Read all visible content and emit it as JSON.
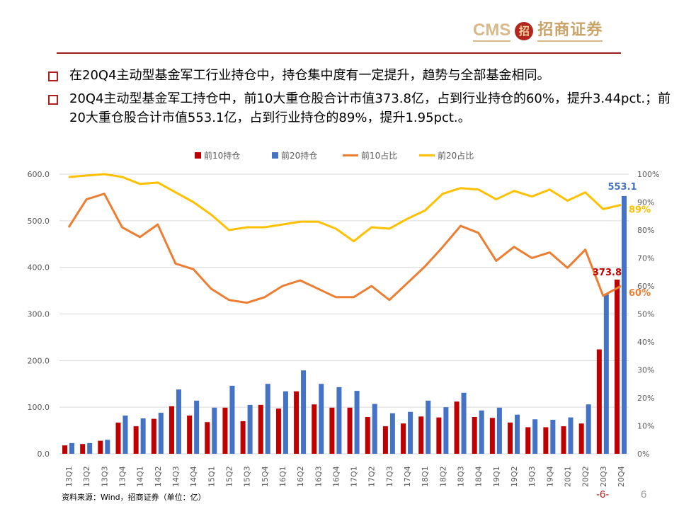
{
  "header": {
    "logo_latin": "CMS",
    "logo_badge": "招",
    "logo_cn": "招商证券"
  },
  "bullets": [
    "在20Q4主动型基金军工行业持仓中，持仓集中度有一定提升，趋势与全部基金相同。",
    "20Q4主动型基金军工持仓中，前10大重仓股合计市值373.8亿，占到行业持仓的60%，提升3.44pct.；前20大重仓股合计市值553.1亿，占到行业持仓的89%，提升1.95pct.。"
  ],
  "footer": {
    "source": "资料来源：Wind，招商证券（单位：亿）",
    "page_mark": "-6-",
    "page_number": "6"
  },
  "colors": {
    "top10_bar": "#c00000",
    "top20_bar": "#4472c4",
    "top10_share": "#ed7d31",
    "top20_share": "#ffc000",
    "rule": "#9b1c1c"
  },
  "chart_data": {
    "type": "bar+line",
    "categories": [
      "13Q1",
      "13Q2",
      "13Q3",
      "13Q4",
      "14Q1",
      "14Q2",
      "14Q3",
      "14Q4",
      "15Q1",
      "15Q2",
      "15Q3",
      "15Q4",
      "16Q1",
      "16Q2",
      "16Q3",
      "16Q4",
      "17Q1",
      "17Q2",
      "17Q3",
      "17Q4",
      "18Q1",
      "18Q2",
      "18Q3",
      "18Q4",
      "19Q1",
      "19Q2",
      "19Q3",
      "19Q4",
      "20Q1",
      "20Q2",
      "20Q3",
      "20Q4"
    ],
    "left_axis": {
      "ylim": [
        0,
        600
      ],
      "ticks": [
        "0.0",
        "100.0",
        "200.0",
        "300.0",
        "400.0",
        "500.0",
        "600.0"
      ]
    },
    "right_axis": {
      "ylim": [
        0,
        100
      ],
      "ticks": [
        "0%",
        "10%",
        "20%",
        "30%",
        "40%",
        "50%",
        "60%",
        "70%",
        "80%",
        "90%",
        "100%"
      ]
    },
    "grid": true,
    "legend_position": "top",
    "series": [
      {
        "name": "前10持仓",
        "type": "bar",
        "axis": "left",
        "values": [
          18,
          21,
          28,
          67,
          59,
          75,
          102,
          82,
          68,
          99,
          70,
          105,
          97,
          134,
          106,
          99,
          99,
          79,
          59,
          65,
          80,
          78,
          112,
          79,
          77,
          67,
          57,
          57,
          59,
          65,
          224,
          373.8
        ]
      },
      {
        "name": "前20持仓",
        "type": "bar",
        "axis": "left",
        "values": [
          23,
          23,
          30,
          82,
          76,
          88,
          138,
          114,
          99,
          146,
          105,
          150,
          134,
          179,
          150,
          143,
          135,
          107,
          87,
          90,
          114,
          100,
          131,
          93,
          99,
          84,
          74,
          73,
          78,
          106,
          342,
          553.1
        ]
      },
      {
        "name": "前10占比",
        "type": "line",
        "axis": "right",
        "values": [
          81,
          91,
          93,
          81,
          77.5,
          82,
          68,
          66,
          59,
          55,
          54,
          56,
          60,
          62,
          59,
          56,
          56,
          60,
          55,
          61,
          67,
          74,
          81.5,
          79,
          69,
          74,
          70,
          72,
          66.5,
          73,
          56.5,
          60
        ]
      },
      {
        "name": "前20占比",
        "type": "line",
        "axis": "right",
        "values": [
          99,
          99.5,
          100,
          99,
          96.5,
          97,
          93.5,
          90,
          85.5,
          80,
          81,
          81,
          82,
          83,
          83,
          80.5,
          76,
          81,
          80.5,
          84,
          87,
          93,
          95,
          94.5,
          91,
          94,
          92,
          94.5,
          90.5,
          93.5,
          87.5,
          89
        ]
      }
    ],
    "data_labels": {
      "top10_last": "373.8",
      "top20_last": "553.1",
      "top10_share_last": "60%",
      "top20_share_last": "89%"
    }
  }
}
